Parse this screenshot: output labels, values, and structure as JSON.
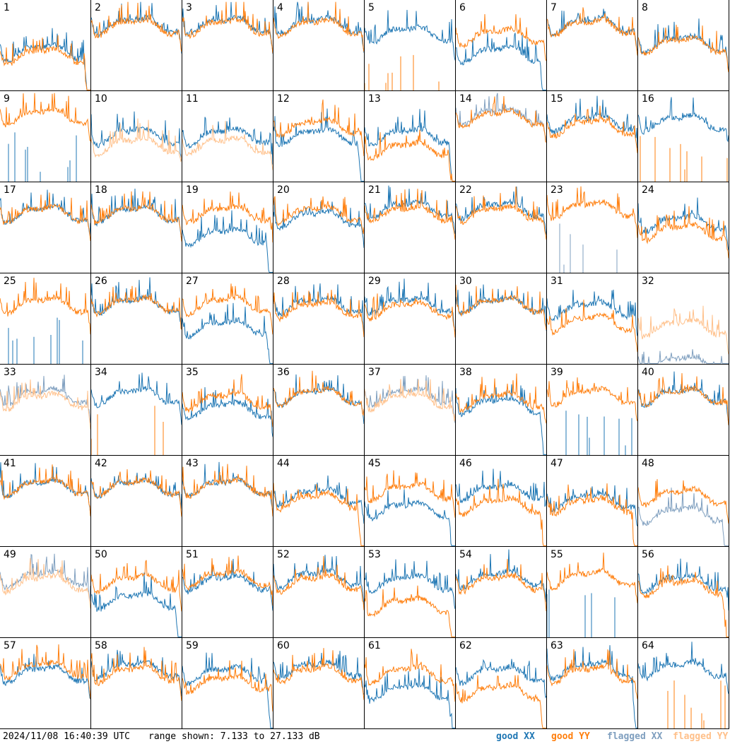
{
  "footer": {
    "timestamp": "2024/11/08 16:40:39 UTC",
    "range": "range shown: 7.133 to 27.133 dB"
  },
  "legend": [
    {
      "label": "good XX",
      "color": "#1f77b4"
    },
    {
      "label": "good YY",
      "color": "#ff7f0e"
    },
    {
      "label": "flagged XX",
      "color": "#7f9fbf"
    },
    {
      "label": "flagged YY",
      "color": "#ffc08a"
    }
  ],
  "chart_data": {
    "type": "line",
    "grid": "8x8 small multiples",
    "ylim": [
      7.133,
      27.133
    ],
    "yunit": "dB",
    "panels": [
      {
        "id": "1",
        "xx": "good",
        "yy": "good",
        "level_xx": 0.58,
        "level_yy": 0.62,
        "drop_xx": "end",
        "drop_yy": "end"
      },
      {
        "id": "2",
        "xx": "good",
        "yy": "good",
        "level_xx": 0.28,
        "level_yy": 0.3
      },
      {
        "id": "3",
        "xx": "good",
        "yy": "good",
        "level_xx": 0.28,
        "level_yy": 0.3
      },
      {
        "id": "4",
        "xx": "good",
        "yy": "good",
        "level_xx": 0.28,
        "level_yy": 0.3
      },
      {
        "id": "5",
        "xx": "good",
        "yy": "good",
        "level_xx": 0.38,
        "level_yy": 1.0,
        "spikes_yy": true
      },
      {
        "id": "6",
        "xx": "good",
        "yy": "good",
        "level_xx": 0.6,
        "level_yy": 0.4,
        "drop_xx": "end"
      },
      {
        "id": "7",
        "xx": "good",
        "yy": "good",
        "level_xx": 0.28,
        "level_yy": 0.3
      },
      {
        "id": "8",
        "xx": "good",
        "yy": "good",
        "level_xx": 0.48,
        "level_yy": 0.5
      },
      {
        "id": "9",
        "xx": "good",
        "yy": "good",
        "level_xx": 1.0,
        "level_yy": 0.28,
        "spikes_xx": true
      },
      {
        "id": "10",
        "xx": "good",
        "yy": "flagged",
        "level_xx": 0.5,
        "level_yy": 0.6
      },
      {
        "id": "11",
        "xx": "good",
        "yy": "flagged",
        "level_xx": 0.5,
        "level_yy": 0.6
      },
      {
        "id": "12",
        "xx": "good",
        "yy": "good",
        "level_xx": 0.5,
        "level_yy": 0.4,
        "drop_xx": "end"
      },
      {
        "id": "13",
        "xx": "good",
        "yy": "good",
        "level_xx": 0.5,
        "level_yy": 0.65,
        "drop_xx": "end",
        "drop_yy": "end"
      },
      {
        "id": "14",
        "xx": "flagged",
        "yy": "good",
        "level_xx": 0.28,
        "level_yy": 0.3
      },
      {
        "id": "15",
        "xx": "good",
        "yy": "good",
        "level_xx": 0.35,
        "level_yy": 0.4
      },
      {
        "id": "16",
        "xx": "good",
        "yy": "good",
        "level_xx": 0.35,
        "level_yy": 1.0,
        "spikes_yy": true
      },
      {
        "id": "17",
        "xx": "good",
        "yy": "good",
        "level_xx": 0.35,
        "level_yy": 0.35
      },
      {
        "id": "18",
        "xx": "good",
        "yy": "good",
        "level_xx": 0.35,
        "level_yy": 0.35
      },
      {
        "id": "19",
        "xx": "good",
        "yy": "good",
        "level_xx": 0.6,
        "level_yy": 0.35,
        "drop_xx": "end"
      },
      {
        "id": "20",
        "xx": "good",
        "yy": "good",
        "level_xx": 0.4,
        "level_yy": 0.35
      },
      {
        "id": "21",
        "xx": "good",
        "yy": "good",
        "level_xx": 0.3,
        "level_yy": 0.35
      },
      {
        "id": "22",
        "xx": "good",
        "yy": "good",
        "level_xx": 0.3,
        "level_yy": 0.35
      },
      {
        "id": "23",
        "xx": "flagged",
        "yy": "good",
        "level_xx": 1.0,
        "level_yy": 0.3,
        "spikes_xx": true
      },
      {
        "id": "24",
        "xx": "good",
        "yy": "good",
        "level_xx": 0.45,
        "level_yy": 0.55
      },
      {
        "id": "25",
        "xx": "good",
        "yy": "good",
        "level_xx": 1.0,
        "level_yy": 0.35,
        "spikes_xx": true
      },
      {
        "id": "26",
        "xx": "good",
        "yy": "good",
        "level_xx": 0.35,
        "level_yy": 0.35
      },
      {
        "id": "27",
        "xx": "good",
        "yy": "good",
        "level_xx": 0.6,
        "level_yy": 0.35,
        "drop_xx": "end"
      },
      {
        "id": "28",
        "xx": "good",
        "yy": "good",
        "level_xx": 0.35,
        "level_yy": 0.4
      },
      {
        "id": "29",
        "xx": "good",
        "yy": "good",
        "level_xx": 0.35,
        "level_yy": 0.4
      },
      {
        "id": "30",
        "xx": "good",
        "yy": "good",
        "level_xx": 0.35,
        "level_yy": 0.35
      },
      {
        "id": "31",
        "xx": "good",
        "yy": "good",
        "level_xx": 0.4,
        "level_yy": 0.55
      },
      {
        "id": "32",
        "xx": "flagged",
        "yy": "flagged",
        "level_xx": 1.0,
        "level_yy": 0.6
      },
      {
        "id": "33",
        "xx": "flagged",
        "yy": "flagged",
        "level_xx": 0.35,
        "level_yy": 0.4
      },
      {
        "id": "34",
        "xx": "good",
        "yy": "good",
        "level_xx": 0.35,
        "level_yy": 1.0,
        "spikes_yy": true
      },
      {
        "id": "35",
        "xx": "good",
        "yy": "good",
        "level_xx": 0.5,
        "level_yy": 0.4
      },
      {
        "id": "36",
        "xx": "good",
        "yy": "good",
        "level_xx": 0.35,
        "level_yy": 0.35
      },
      {
        "id": "37",
        "xx": "flagged",
        "yy": "flagged",
        "level_xx": 0.35,
        "level_yy": 0.4
      },
      {
        "id": "38",
        "xx": "good",
        "yy": "good",
        "level_xx": 0.45,
        "level_yy": 0.4,
        "drop_xx": "end"
      },
      {
        "id": "39",
        "xx": "good",
        "yy": "good",
        "level_xx": 1.0,
        "level_yy": 0.35,
        "spikes_xx": true
      },
      {
        "id": "40",
        "xx": "good",
        "yy": "good",
        "level_xx": 0.35,
        "level_yy": 0.35
      },
      {
        "id": "41",
        "xx": "good",
        "yy": "good",
        "level_xx": 0.35,
        "level_yy": 0.35
      },
      {
        "id": "42",
        "xx": "good",
        "yy": "good",
        "level_xx": 0.35,
        "level_yy": 0.35
      },
      {
        "id": "43",
        "xx": "good",
        "yy": "good",
        "level_xx": 0.35,
        "level_yy": 0.35
      },
      {
        "id": "44",
        "xx": "good",
        "yy": "good",
        "level_xx": 0.45,
        "level_yy": 0.5,
        "drop_yy": "end"
      },
      {
        "id": "45",
        "xx": "good",
        "yy": "good",
        "level_xx": 0.6,
        "level_yy": 0.4,
        "drop_xx": "end"
      },
      {
        "id": "46",
        "xx": "good",
        "yy": "good",
        "level_xx": 0.4,
        "level_yy": 0.55,
        "drop_yy": "end"
      },
      {
        "id": "47",
        "xx": "good",
        "yy": "good",
        "level_xx": 0.5,
        "level_yy": 0.55,
        "drop_yy": "end"
      },
      {
        "id": "48",
        "xx": "flagged",
        "yy": "good",
        "level_xx": 0.65,
        "level_yy": 0.45,
        "drop_xx": "end"
      },
      {
        "id": "49",
        "xx": "flagged",
        "yy": "flagged",
        "level_xx": 0.35,
        "level_yy": 0.4
      },
      {
        "id": "50",
        "xx": "good",
        "yy": "good",
        "level_xx": 0.6,
        "level_yy": 0.4,
        "drop_xx": "end"
      },
      {
        "id": "51",
        "xx": "good",
        "yy": "good",
        "level_xx": 0.4,
        "level_yy": 0.35
      },
      {
        "id": "52",
        "xx": "good",
        "yy": "good",
        "level_xx": 0.35,
        "level_yy": 0.4
      },
      {
        "id": "53",
        "xx": "good",
        "yy": "good",
        "level_xx": 0.4,
        "level_yy": 0.65,
        "drop_yy": "end"
      },
      {
        "id": "54",
        "xx": "good",
        "yy": "good",
        "level_xx": 0.35,
        "level_yy": 0.4
      },
      {
        "id": "55",
        "xx": "good",
        "yy": "good",
        "level_xx": 1.0,
        "level_yy": 0.35,
        "spikes_xx": true
      },
      {
        "id": "56",
        "xx": "good",
        "yy": "good",
        "level_xx": 0.4,
        "level_yy": 0.45,
        "drop_yy": "end"
      },
      {
        "id": "57",
        "xx": "good",
        "yy": "good",
        "level_xx": 0.4,
        "level_yy": 0.35
      },
      {
        "id": "58",
        "xx": "good",
        "yy": "good",
        "level_xx": 0.35,
        "level_yy": 0.4
      },
      {
        "id": "59",
        "xx": "good",
        "yy": "good",
        "level_xx": 0.4,
        "level_yy": 0.5,
        "drop_xx": "end"
      },
      {
        "id": "60",
        "xx": "good",
        "yy": "good",
        "level_xx": 0.35,
        "level_yy": 0.4
      },
      {
        "id": "61",
        "xx": "good",
        "yy": "good",
        "level_xx": 0.6,
        "level_yy": 0.4,
        "drop_xx": "end"
      },
      {
        "id": "62",
        "xx": "good",
        "yy": "good",
        "level_xx": 0.4,
        "level_yy": 0.6,
        "drop_yy": "end"
      },
      {
        "id": "63",
        "xx": "good",
        "yy": "good",
        "level_xx": 0.35,
        "level_yy": 0.4,
        "drop_xx": "end"
      },
      {
        "id": "64",
        "xx": "good",
        "yy": "good",
        "level_xx": 0.35,
        "level_yy": 1.0,
        "spikes_yy": true
      }
    ]
  }
}
